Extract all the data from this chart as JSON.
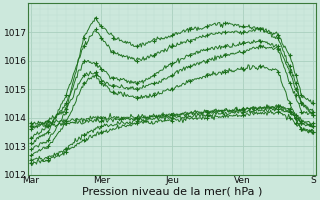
{
  "bg_color": "#cce8dc",
  "plot_bg_color": "#cce8dc",
  "grid_major_color": "#aacfbf",
  "grid_minor_color": "#bbddd0",
  "line_color": "#1a6e1a",
  "marker_color": "#1a6e1a",
  "xlabel": "Pression niveau de la mer( hPa )",
  "xlabel_fontsize": 8,
  "ylim": [
    1012,
    1018
  ],
  "yticks": [
    1012,
    1013,
    1014,
    1015,
    1016,
    1017
  ],
  "xtick_labels": [
    "Mar",
    "Mer",
    "Jeu",
    "Ven",
    "S"
  ],
  "figsize": [
    3.2,
    2.0
  ],
  "dpi": 100,
  "series": [
    [
      [
        0,
        1013.6
      ],
      [
        6,
        1013.9
      ],
      [
        12,
        1014.3
      ],
      [
        18,
        1015.5
      ],
      [
        22,
        1015.6
      ],
      [
        24,
        1015.3
      ],
      [
        28,
        1015.1
      ],
      [
        36,
        1015.0
      ],
      [
        42,
        1015.2
      ],
      [
        48,
        1015.5
      ],
      [
        54,
        1015.8
      ],
      [
        60,
        1016.0
      ],
      [
        66,
        1016.2
      ],
      [
        72,
        1016.3
      ],
      [
        78,
        1016.5
      ],
      [
        84,
        1016.4
      ],
      [
        88,
        1015.2
      ],
      [
        90,
        1014.8
      ],
      [
        92,
        1014.2
      ],
      [
        96,
        1014.1
      ]
    ],
    [
      [
        0,
        1013.3
      ],
      [
        6,
        1013.7
      ],
      [
        12,
        1014.5
      ],
      [
        18,
        1016.0
      ],
      [
        22,
        1015.9
      ],
      [
        24,
        1015.7
      ],
      [
        28,
        1015.4
      ],
      [
        36,
        1015.2
      ],
      [
        42,
        1015.5
      ],
      [
        48,
        1015.9
      ],
      [
        54,
        1016.2
      ],
      [
        60,
        1016.4
      ],
      [
        66,
        1016.5
      ],
      [
        72,
        1016.6
      ],
      [
        78,
        1016.7
      ],
      [
        84,
        1016.5
      ],
      [
        88,
        1015.6
      ],
      [
        90,
        1015.0
      ],
      [
        92,
        1014.5
      ],
      [
        96,
        1014.2
      ]
    ],
    [
      [
        0,
        1013.1
      ],
      [
        6,
        1013.5
      ],
      [
        12,
        1014.8
      ],
      [
        18,
        1016.5
      ],
      [
        22,
        1017.1
      ],
      [
        24,
        1016.8
      ],
      [
        28,
        1016.3
      ],
      [
        36,
        1016.0
      ],
      [
        42,
        1016.2
      ],
      [
        48,
        1016.5
      ],
      [
        54,
        1016.7
      ],
      [
        60,
        1016.9
      ],
      [
        66,
        1017.0
      ],
      [
        72,
        1017.0
      ],
      [
        78,
        1017.1
      ],
      [
        84,
        1016.9
      ],
      [
        88,
        1016.2
      ],
      [
        90,
        1015.5
      ],
      [
        92,
        1014.8
      ],
      [
        96,
        1014.5
      ]
    ],
    [
      [
        0,
        1012.9
      ],
      [
        6,
        1013.2
      ],
      [
        12,
        1014.2
      ],
      [
        18,
        1016.8
      ],
      [
        22,
        1017.5
      ],
      [
        24,
        1017.2
      ],
      [
        28,
        1016.8
      ],
      [
        36,
        1016.5
      ],
      [
        42,
        1016.7
      ],
      [
        48,
        1016.9
      ],
      [
        54,
        1017.1
      ],
      [
        60,
        1017.2
      ],
      [
        66,
        1017.3
      ],
      [
        72,
        1017.2
      ],
      [
        78,
        1017.1
      ],
      [
        84,
        1016.8
      ],
      [
        88,
        1015.8
      ],
      [
        90,
        1015.2
      ],
      [
        92,
        1014.5
      ],
      [
        96,
        1014.1
      ]
    ],
    [
      [
        0,
        1012.7
      ],
      [
        6,
        1013.0
      ],
      [
        12,
        1013.8
      ],
      [
        18,
        1015.2
      ],
      [
        22,
        1015.5
      ],
      [
        24,
        1015.2
      ],
      [
        28,
        1014.9
      ],
      [
        36,
        1014.7
      ],
      [
        42,
        1014.8
      ],
      [
        48,
        1015.0
      ],
      [
        54,
        1015.3
      ],
      [
        60,
        1015.5
      ],
      [
        66,
        1015.6
      ],
      [
        72,
        1015.7
      ],
      [
        78,
        1015.8
      ],
      [
        84,
        1015.6
      ],
      [
        88,
        1014.5
      ],
      [
        90,
        1014.0
      ],
      [
        92,
        1013.6
      ],
      [
        96,
        1013.5
      ]
    ],
    [
      [
        0,
        1013.8
      ],
      [
        12,
        1013.9
      ],
      [
        24,
        1014.0
      ],
      [
        36,
        1014.0
      ],
      [
        48,
        1014.1
      ],
      [
        60,
        1014.2
      ],
      [
        72,
        1014.3
      ],
      [
        84,
        1014.4
      ],
      [
        88,
        1014.3
      ],
      [
        90,
        1014.1
      ],
      [
        92,
        1013.9
      ],
      [
        96,
        1013.8
      ]
    ],
    [
      [
        0,
        1013.7
      ],
      [
        12,
        1013.8
      ],
      [
        24,
        1013.9
      ],
      [
        36,
        1014.0
      ],
      [
        48,
        1014.1
      ],
      [
        60,
        1014.2
      ],
      [
        72,
        1014.3
      ],
      [
        84,
        1014.4
      ],
      [
        88,
        1014.2
      ],
      [
        90,
        1014.0
      ],
      [
        92,
        1013.8
      ],
      [
        96,
        1013.7
      ]
    ],
    [
      [
        0,
        1012.5
      ],
      [
        6,
        1012.6
      ],
      [
        12,
        1012.9
      ],
      [
        18,
        1013.4
      ],
      [
        24,
        1013.7
      ],
      [
        36,
        1013.9
      ],
      [
        48,
        1014.0
      ],
      [
        60,
        1014.1
      ],
      [
        72,
        1014.2
      ],
      [
        84,
        1014.3
      ],
      [
        88,
        1014.2
      ],
      [
        90,
        1014.0
      ],
      [
        92,
        1013.8
      ],
      [
        96,
        1013.7
      ]
    ],
    [
      [
        0,
        1012.4
      ],
      [
        6,
        1012.5
      ],
      [
        12,
        1012.8
      ],
      [
        18,
        1013.2
      ],
      [
        24,
        1013.5
      ],
      [
        36,
        1013.8
      ],
      [
        48,
        1013.9
      ],
      [
        60,
        1014.0
      ],
      [
        72,
        1014.1
      ],
      [
        84,
        1014.2
      ],
      [
        88,
        1014.0
      ],
      [
        90,
        1013.8
      ],
      [
        92,
        1013.6
      ],
      [
        96,
        1013.5
      ]
    ]
  ]
}
